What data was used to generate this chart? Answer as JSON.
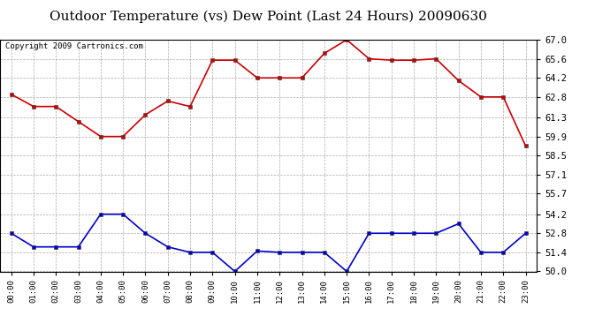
{
  "title": "Outdoor Temperature (vs) Dew Point (Last 24 Hours) 20090630",
  "copyright": "Copyright 2009 Cartronics.com",
  "hours": [
    "00:00",
    "01:00",
    "02:00",
    "03:00",
    "04:00",
    "05:00",
    "06:00",
    "07:00",
    "08:00",
    "09:00",
    "10:00",
    "11:00",
    "12:00",
    "13:00",
    "14:00",
    "15:00",
    "16:00",
    "17:00",
    "18:00",
    "19:00",
    "20:00",
    "21:00",
    "22:00",
    "23:00"
  ],
  "temp": [
    63.0,
    62.1,
    62.1,
    61.0,
    59.9,
    59.9,
    61.5,
    62.5,
    62.1,
    65.5,
    65.5,
    64.2,
    64.2,
    64.2,
    66.0,
    67.0,
    65.6,
    65.5,
    65.5,
    65.6,
    64.0,
    62.8,
    62.8,
    59.2
  ],
  "dew": [
    52.8,
    51.8,
    51.8,
    51.8,
    54.2,
    54.2,
    52.8,
    51.8,
    51.4,
    51.4,
    50.0,
    51.5,
    51.4,
    51.4,
    51.4,
    50.0,
    52.8,
    52.8,
    52.8,
    52.8,
    53.5,
    51.4,
    51.4,
    52.8
  ],
  "ylim_min": 50.0,
  "ylim_max": 67.0,
  "yticks": [
    50.0,
    51.4,
    52.8,
    54.2,
    55.7,
    57.1,
    58.5,
    59.9,
    61.3,
    62.8,
    64.2,
    65.6,
    67.0
  ],
  "temp_color": "#cc0000",
  "dew_color": "#0000cc",
  "bg_color": "#ffffff",
  "grid_color": "#aaaaaa",
  "title_fontsize": 11,
  "copyright_fontsize": 6.5
}
